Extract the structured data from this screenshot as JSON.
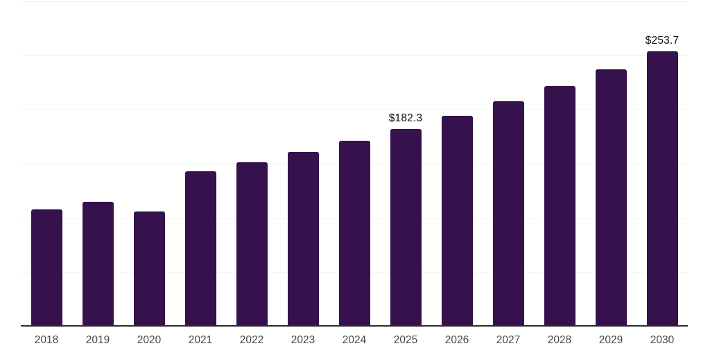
{
  "chart_data": {
    "type": "bar",
    "title": "",
    "xlabel": "",
    "ylabel": "",
    "categories": [
      "2018",
      "2019",
      "2020",
      "2021",
      "2022",
      "2023",
      "2024",
      "2025",
      "2026",
      "2027",
      "2028",
      "2029",
      "2030"
    ],
    "values": [
      108,
      115,
      106,
      143,
      151,
      161,
      171,
      182.3,
      194,
      208,
      222,
      237,
      253.7
    ],
    "value_labels": [
      "",
      "",
      "",
      "",
      "",
      "",
      "",
      "$182.3",
      "",
      "",
      "",
      "",
      "$253.7"
    ],
    "ylim": [
      0,
      300
    ],
    "gridline_step": 50,
    "grid": "horizontal-only",
    "legend_position": "none",
    "y_axis_ticks_visible": false
  },
  "colors": {
    "bar": "#35124B",
    "gridline": "#f0f0f0",
    "axis_line": "#2b2b2b",
    "tick_label": "#474747",
    "value_label": "#0a0a0a",
    "background": "#ffffff"
  }
}
